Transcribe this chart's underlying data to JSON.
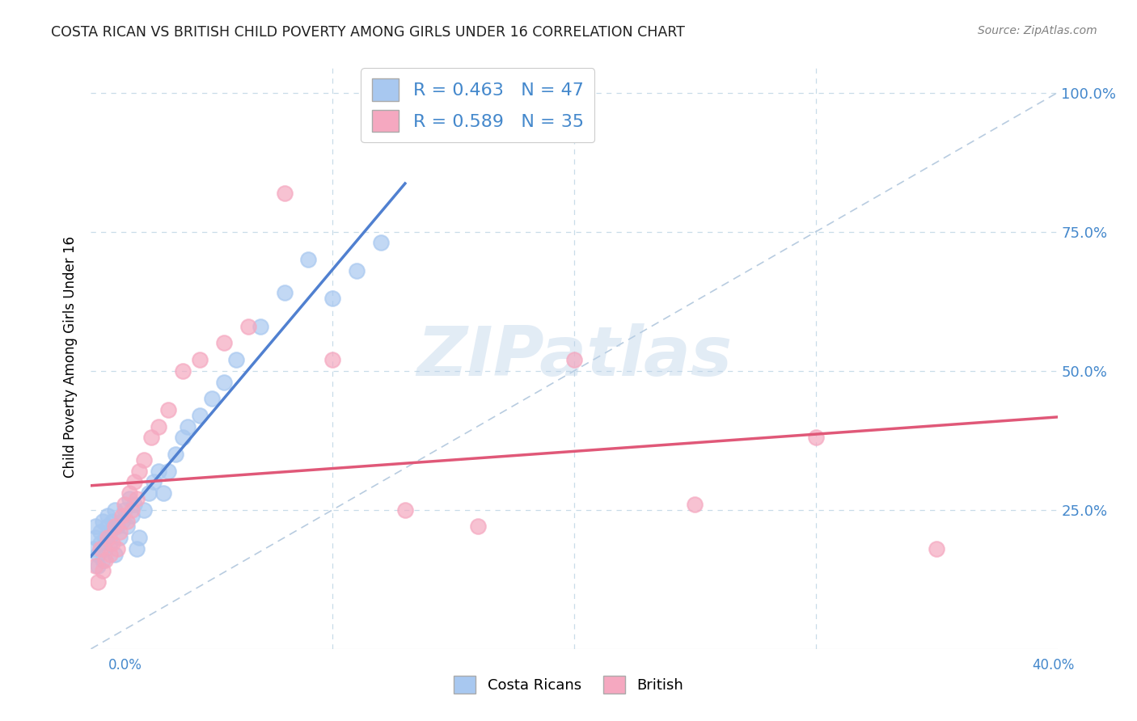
{
  "title": "COSTA RICAN VS BRITISH CHILD POVERTY AMONG GIRLS UNDER 16 CORRELATION CHART",
  "source": "Source: ZipAtlas.com",
  "ylabel": "Child Poverty Among Girls Under 16",
  "watermark": "ZIPatlas",
  "legend_cr": "R = 0.463   N = 47",
  "legend_br": "R = 0.589   N = 35",
  "legend_label_cr": "Costa Ricans",
  "legend_label_br": "British",
  "color_cr": "#a8c8f0",
  "color_br": "#f5a8c0",
  "line_color_cr": "#5080d0",
  "line_color_br": "#e05878",
  "xlim": [
    0.0,
    0.4
  ],
  "ylim": [
    0.0,
    1.05
  ],
  "diag_line_color": "#b8cce0",
  "background_color": "#ffffff",
  "grid_color": "#c8dce8",
  "title_color": "#202020",
  "source_color": "#808080",
  "axis_label_color": "#4488cc",
  "watermark_color": "#b8d0e8",
  "watermark_alpha": 0.4,
  "cr_x": [
    0.001,
    0.002,
    0.002,
    0.003,
    0.003,
    0.004,
    0.004,
    0.005,
    0.005,
    0.006,
    0.006,
    0.007,
    0.007,
    0.008,
    0.008,
    0.009,
    0.01,
    0.01,
    0.011,
    0.012,
    0.013,
    0.014,
    0.015,
    0.016,
    0.017,
    0.018,
    0.019,
    0.02,
    0.022,
    0.024,
    0.026,
    0.028,
    0.03,
    0.032,
    0.035,
    0.038,
    0.04,
    0.045,
    0.05,
    0.055,
    0.06,
    0.07,
    0.08,
    0.09,
    0.1,
    0.11,
    0.12
  ],
  "cr_y": [
    0.18,
    0.2,
    0.22,
    0.15,
    0.17,
    0.19,
    0.21,
    0.16,
    0.23,
    0.18,
    0.2,
    0.22,
    0.24,
    0.19,
    0.21,
    0.23,
    0.17,
    0.25,
    0.22,
    0.2,
    0.23,
    0.25,
    0.22,
    0.27,
    0.24,
    0.26,
    0.18,
    0.2,
    0.25,
    0.28,
    0.3,
    0.32,
    0.28,
    0.32,
    0.35,
    0.38,
    0.4,
    0.42,
    0.45,
    0.48,
    0.52,
    0.58,
    0.64,
    0.7,
    0.63,
    0.68,
    0.73
  ],
  "br_x": [
    0.002,
    0.003,
    0.004,
    0.005,
    0.006,
    0.007,
    0.008,
    0.009,
    0.01,
    0.011,
    0.012,
    0.013,
    0.014,
    0.015,
    0.016,
    0.017,
    0.018,
    0.019,
    0.02,
    0.022,
    0.025,
    0.028,
    0.032,
    0.038,
    0.045,
    0.055,
    0.065,
    0.08,
    0.1,
    0.13,
    0.16,
    0.2,
    0.25,
    0.3,
    0.35
  ],
  "br_y": [
    0.15,
    0.12,
    0.18,
    0.14,
    0.16,
    0.2,
    0.17,
    0.19,
    0.22,
    0.18,
    0.21,
    0.24,
    0.26,
    0.23,
    0.28,
    0.25,
    0.3,
    0.27,
    0.32,
    0.34,
    0.38,
    0.4,
    0.43,
    0.5,
    0.52,
    0.55,
    0.58,
    0.82,
    0.52,
    0.25,
    0.22,
    0.52,
    0.26,
    0.38,
    0.18
  ]
}
